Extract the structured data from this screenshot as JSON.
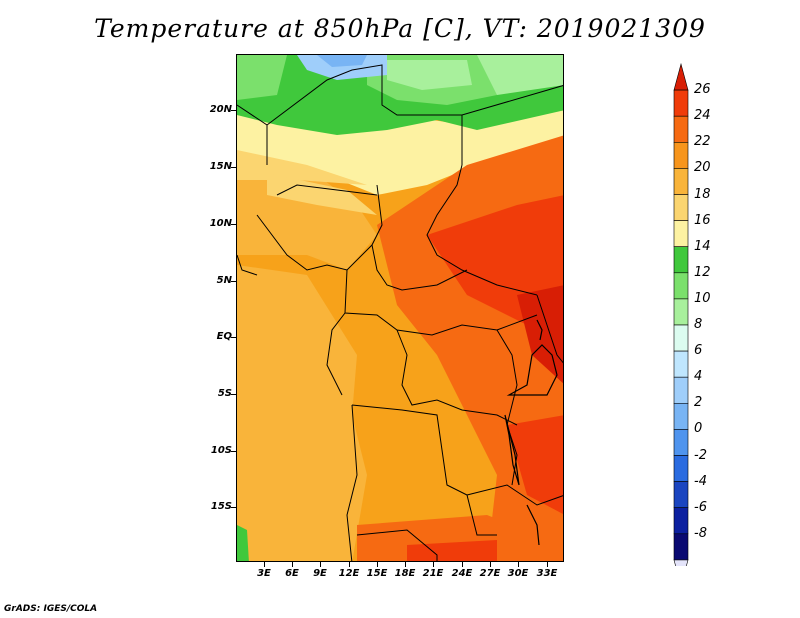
{
  "title": "Temperature at 850hPa [C], VT: 2019021309",
  "footer": "GrADS: IGES/COLA",
  "map": {
    "lat_labels": [
      "20N",
      "15N",
      "10N",
      "5N",
      "EQ",
      "5S",
      "10S",
      "15S"
    ],
    "lon_labels": [
      "3E",
      "6E",
      "9E",
      "12E",
      "15E",
      "18E",
      "21E",
      "24E",
      "27E",
      "30E",
      "33E"
    ]
  },
  "colorbar": {
    "levels": [
      "26",
      "24",
      "22",
      "20",
      "18",
      "16",
      "14",
      "12",
      "10",
      "8",
      "6",
      "4",
      "2",
      "0",
      "-2",
      "-4",
      "-6",
      "-8"
    ],
    "colors": [
      "#d81e05",
      "#f03c0a",
      "#f66a12",
      "#f7951c",
      "#f9b43a",
      "#fbd570",
      "#fdf2a2",
      "#40c83c",
      "#7be06c",
      "#a8f09c",
      "#dcfcf0",
      "#bfe6fe",
      "#9fcefa",
      "#78b4f4",
      "#4f94ee",
      "#2a6be0",
      "#1a45c0",
      "#0c20a0",
      "#0a0a72",
      "#e4e4fa"
    ]
  }
}
